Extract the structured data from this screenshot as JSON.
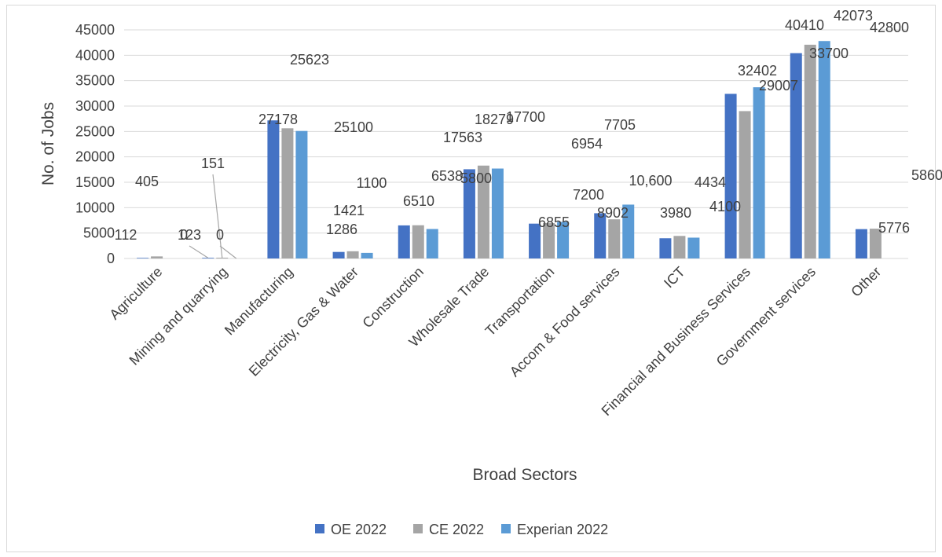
{
  "chart_data": {
    "type": "bar",
    "title": "",
    "xlabel": "Broad Sectors",
    "ylabel": "No. of Jobs",
    "ylim": [
      0,
      45000
    ],
    "yticks": [
      0,
      5000,
      10000,
      15000,
      20000,
      25000,
      30000,
      35000,
      40000,
      45000
    ],
    "grid": true,
    "legend_position": "bottom",
    "categories": [
      "Agriculture",
      "Mining and quarrying",
      "Manufacturing",
      "Electricity, Gas & Water",
      "Construction",
      "Wholesale Trade",
      "Transportation",
      "Accom & Food services",
      "ICT",
      "Financial and Business Services",
      "Government services",
      "Other"
    ],
    "series": [
      {
        "name": "OE 2022",
        "color": "#4472c4",
        "values": [
          112,
          123,
          27178,
          1286,
          6510,
          17563,
          6855,
          8902,
          3980,
          32402,
          40410,
          5776
        ],
        "labels": [
          "112",
          "123",
          "27178",
          "1286",
          "6510",
          "17563",
          "6855",
          "8902",
          "3980",
          "32402",
          "40410",
          "5776"
        ]
      },
      {
        "name": "CE 2022",
        "color": "#a5a5a5",
        "values": [
          405,
          151,
          25623,
          1421,
          6538,
          18279,
          6954,
          7705,
          4434,
          29007,
          42073,
          5860
        ],
        "labels": [
          "405",
          "151",
          "25623",
          "1421",
          "6538",
          "18279",
          "6954",
          "7705",
          "4434",
          "29007",
          "42073",
          "5860"
        ]
      },
      {
        "name": "Experian  2022",
        "color": "#5b9bd5",
        "values": [
          0,
          0,
          25100,
          1100,
          5800,
          17700,
          7200,
          10600,
          4100,
          33700,
          42800,
          null
        ],
        "labels": [
          "0",
          "0",
          "25100",
          "1100",
          "5800",
          "17700",
          "7200",
          "10,600",
          "4100",
          "33700",
          "42800",
          null
        ]
      }
    ]
  }
}
